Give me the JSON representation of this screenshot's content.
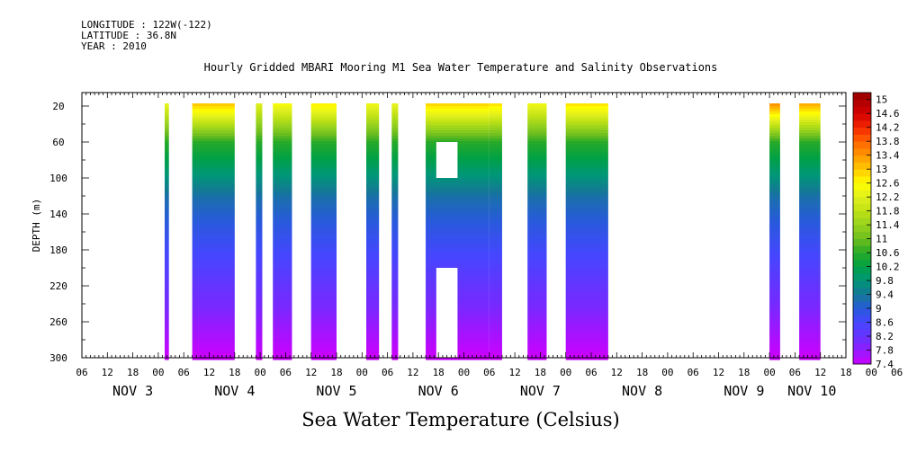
{
  "header": {
    "longitude": "LONGITUDE : 122W(-122)",
    "latitude": "LATITUDE : 36.8N",
    "year": "YEAR : 2010"
  },
  "chart_data": {
    "type": "heatmap",
    "title": "Hourly Gridded MBARI Mooring M1 Sea Water Temperature and Salinity Observations",
    "xlabel": "Sea Water Temperature (Celsius)",
    "ylabel": "DEPTH (m)",
    "x_axis": {
      "unit": "hours since 2010-11-03 00:00 (local plot start)",
      "range_hours": [
        0,
        180
      ],
      "hour_tick_labels": [
        "06",
        "12",
        "18",
        "00",
        "06",
        "12",
        "18",
        "00",
        "06",
        "12",
        "18",
        "00",
        "06",
        "12",
        "18",
        "00",
        "06",
        "12",
        "18",
        "00",
        "06",
        "12",
        "18",
        "00",
        "06",
        "12",
        "18",
        "00",
        "06",
        "12",
        "18",
        "00",
        "06"
      ],
      "day_labels": [
        {
          "label": "NOV  3",
          "center_hour": 12
        },
        {
          "label": "NOV  4",
          "center_hour": 36
        },
        {
          "label": "NOV  5",
          "center_hour": 60
        },
        {
          "label": "NOV  6",
          "center_hour": 84
        },
        {
          "label": "NOV  7",
          "center_hour": 108
        },
        {
          "label": "NOV  8",
          "center_hour": 132
        },
        {
          "label": "NOV  9",
          "center_hour": 156
        },
        {
          "label": "NOV 10",
          "center_hour": 172
        }
      ]
    },
    "y_axis": {
      "range": [
        300,
        5
      ],
      "inverted": true,
      "tick_labels": [
        "20",
        "60",
        "100",
        "140",
        "180",
        "220",
        "260",
        "300"
      ]
    },
    "colorbar": {
      "labels": [
        "15",
        "14.6",
        "14.2",
        "13.8",
        "13.4",
        "13",
        "12.6",
        "12.2",
        "11.8",
        "11.4",
        "11",
        "10.6",
        "10.2",
        "9.8",
        "9.4",
        "9",
        "8.6",
        "8.2",
        "7.8",
        "7.4"
      ],
      "range": [
        7.4,
        15.2
      ]
    },
    "data_blocks": [
      {
        "t_start": 19.5,
        "t_end": 20.5,
        "surface_temp": 12.2
      },
      {
        "t_start": 26,
        "t_end": 36,
        "surface_temp": 12.9
      },
      {
        "t_start": 41,
        "t_end": 42.5,
        "surface_temp": 12.1
      },
      {
        "t_start": 45,
        "t_end": 49.5,
        "surface_temp": 12.4
      },
      {
        "t_start": 54,
        "t_end": 60,
        "surface_temp": 12.6
      },
      {
        "t_start": 67,
        "t_end": 70,
        "surface_temp": 12.3
      },
      {
        "t_start": 73,
        "t_end": 74.5,
        "surface_temp": 12.2
      },
      {
        "t_start": 81,
        "t_end": 96,
        "surface_temp": 12.8,
        "gaps_depth": [
          [
            60,
            100
          ],
          [
            200,
            300
          ]
        ],
        "gap_t": [
          83.5,
          88.5
        ]
      },
      {
        "t_start": 96,
        "t_end": 99,
        "surface_temp": 12.7
      },
      {
        "t_start": 105,
        "t_end": 109.5,
        "surface_temp": 12.3
      },
      {
        "t_start": 114,
        "t_end": 124,
        "surface_temp": 12.7
      },
      {
        "t_start": 162,
        "t_end": 164.5,
        "surface_temp": 13.3
      },
      {
        "t_start": 169,
        "t_end": 174,
        "surface_temp": 13.1
      }
    ]
  }
}
